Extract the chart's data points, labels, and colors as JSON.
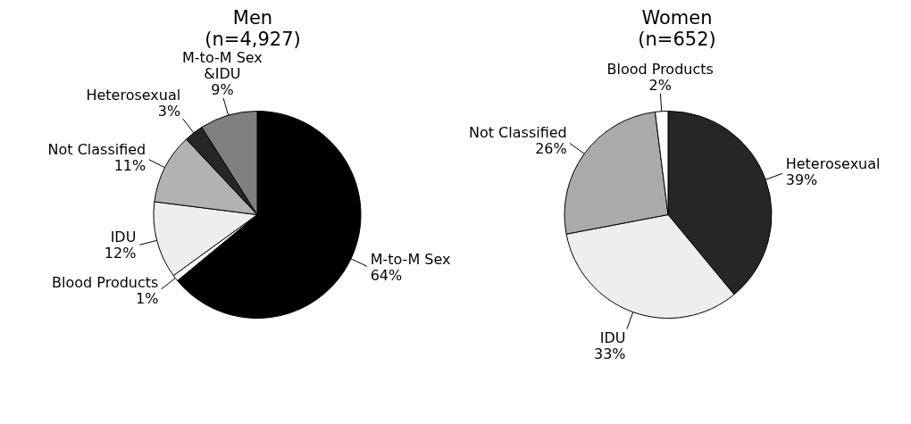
{
  "chart_data": [
    {
      "type": "pie",
      "title": "Men",
      "subtitle": "(n=4,927)",
      "categories": [
        "M-to-M Sex",
        "Blood Products",
        "IDU",
        "Not Classified",
        "Heterosexual",
        "M-to-M Sex\n&IDU"
      ],
      "values": [
        64,
        1,
        12,
        11,
        3,
        9
      ],
      "value_labels": [
        "64%",
        "1%",
        "12%",
        "11%",
        "3%",
        "9%"
      ],
      "colors": [
        "#000000",
        "#ffffff",
        "#eeeeee",
        "#b2b2b2",
        "#262626",
        "#7f7f7f"
      ],
      "legend": false
    },
    {
      "type": "pie",
      "title": "Women",
      "subtitle": "(n=652)",
      "categories": [
        "Heterosexual",
        "IDU",
        "Not Classified",
        "Blood Products"
      ],
      "values": [
        39,
        33,
        26,
        2
      ],
      "value_labels": [
        "39%",
        "33%",
        "26%",
        "2%"
      ],
      "colors": [
        "#262626",
        "#eeeeee",
        "#aaaaaa",
        "#ffffff"
      ],
      "legend": false
    }
  ]
}
